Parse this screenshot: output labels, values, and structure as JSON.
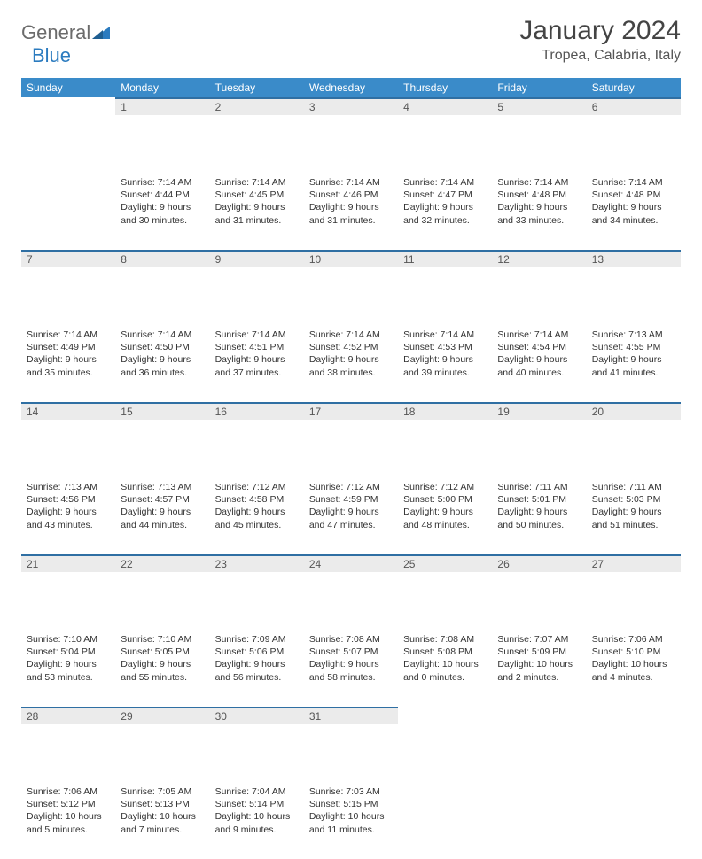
{
  "brand": {
    "word1": "General",
    "word2": "Blue"
  },
  "title": "January 2024",
  "location": "Tropea, Calabria, Italy",
  "colors": {
    "header_bg": "#3a8bc9",
    "daynum_bg": "#ebebeb",
    "daynum_border": "#2f6fa3",
    "text": "#333333",
    "brand_gray": "#6b6b6b",
    "brand_blue": "#2b7bbf"
  },
  "days_of_week": [
    "Sunday",
    "Monday",
    "Tuesday",
    "Wednesday",
    "Thursday",
    "Friday",
    "Saturday"
  ],
  "weeks": [
    [
      null,
      {
        "n": "1",
        "sunrise": "7:14 AM",
        "sunset": "4:44 PM",
        "daylight": "9 hours and 30 minutes."
      },
      {
        "n": "2",
        "sunrise": "7:14 AM",
        "sunset": "4:45 PM",
        "daylight": "9 hours and 31 minutes."
      },
      {
        "n": "3",
        "sunrise": "7:14 AM",
        "sunset": "4:46 PM",
        "daylight": "9 hours and 31 minutes."
      },
      {
        "n": "4",
        "sunrise": "7:14 AM",
        "sunset": "4:47 PM",
        "daylight": "9 hours and 32 minutes."
      },
      {
        "n": "5",
        "sunrise": "7:14 AM",
        "sunset": "4:48 PM",
        "daylight": "9 hours and 33 minutes."
      },
      {
        "n": "6",
        "sunrise": "7:14 AM",
        "sunset": "4:48 PM",
        "daylight": "9 hours and 34 minutes."
      }
    ],
    [
      {
        "n": "7",
        "sunrise": "7:14 AM",
        "sunset": "4:49 PM",
        "daylight": "9 hours and 35 minutes."
      },
      {
        "n": "8",
        "sunrise": "7:14 AM",
        "sunset": "4:50 PM",
        "daylight": "9 hours and 36 minutes."
      },
      {
        "n": "9",
        "sunrise": "7:14 AM",
        "sunset": "4:51 PM",
        "daylight": "9 hours and 37 minutes."
      },
      {
        "n": "10",
        "sunrise": "7:14 AM",
        "sunset": "4:52 PM",
        "daylight": "9 hours and 38 minutes."
      },
      {
        "n": "11",
        "sunrise": "7:14 AM",
        "sunset": "4:53 PM",
        "daylight": "9 hours and 39 minutes."
      },
      {
        "n": "12",
        "sunrise": "7:14 AM",
        "sunset": "4:54 PM",
        "daylight": "9 hours and 40 minutes."
      },
      {
        "n": "13",
        "sunrise": "7:13 AM",
        "sunset": "4:55 PM",
        "daylight": "9 hours and 41 minutes."
      }
    ],
    [
      {
        "n": "14",
        "sunrise": "7:13 AM",
        "sunset": "4:56 PM",
        "daylight": "9 hours and 43 minutes."
      },
      {
        "n": "15",
        "sunrise": "7:13 AM",
        "sunset": "4:57 PM",
        "daylight": "9 hours and 44 minutes."
      },
      {
        "n": "16",
        "sunrise": "7:12 AM",
        "sunset": "4:58 PM",
        "daylight": "9 hours and 45 minutes."
      },
      {
        "n": "17",
        "sunrise": "7:12 AM",
        "sunset": "4:59 PM",
        "daylight": "9 hours and 47 minutes."
      },
      {
        "n": "18",
        "sunrise": "7:12 AM",
        "sunset": "5:00 PM",
        "daylight": "9 hours and 48 minutes."
      },
      {
        "n": "19",
        "sunrise": "7:11 AM",
        "sunset": "5:01 PM",
        "daylight": "9 hours and 50 minutes."
      },
      {
        "n": "20",
        "sunrise": "7:11 AM",
        "sunset": "5:03 PM",
        "daylight": "9 hours and 51 minutes."
      }
    ],
    [
      {
        "n": "21",
        "sunrise": "7:10 AM",
        "sunset": "5:04 PM",
        "daylight": "9 hours and 53 minutes."
      },
      {
        "n": "22",
        "sunrise": "7:10 AM",
        "sunset": "5:05 PM",
        "daylight": "9 hours and 55 minutes."
      },
      {
        "n": "23",
        "sunrise": "7:09 AM",
        "sunset": "5:06 PM",
        "daylight": "9 hours and 56 minutes."
      },
      {
        "n": "24",
        "sunrise": "7:08 AM",
        "sunset": "5:07 PM",
        "daylight": "9 hours and 58 minutes."
      },
      {
        "n": "25",
        "sunrise": "7:08 AM",
        "sunset": "5:08 PM",
        "daylight": "10 hours and 0 minutes."
      },
      {
        "n": "26",
        "sunrise": "7:07 AM",
        "sunset": "5:09 PM",
        "daylight": "10 hours and 2 minutes."
      },
      {
        "n": "27",
        "sunrise": "7:06 AM",
        "sunset": "5:10 PM",
        "daylight": "10 hours and 4 minutes."
      }
    ],
    [
      {
        "n": "28",
        "sunrise": "7:06 AM",
        "sunset": "5:12 PM",
        "daylight": "10 hours and 5 minutes."
      },
      {
        "n": "29",
        "sunrise": "7:05 AM",
        "sunset": "5:13 PM",
        "daylight": "10 hours and 7 minutes."
      },
      {
        "n": "30",
        "sunrise": "7:04 AM",
        "sunset": "5:14 PM",
        "daylight": "10 hours and 9 minutes."
      },
      {
        "n": "31",
        "sunrise": "7:03 AM",
        "sunset": "5:15 PM",
        "daylight": "10 hours and 11 minutes."
      },
      null,
      null,
      null
    ]
  ],
  "labels": {
    "sunrise_prefix": "Sunrise: ",
    "sunset_prefix": "Sunset: ",
    "daylight_prefix": "Daylight: "
  }
}
